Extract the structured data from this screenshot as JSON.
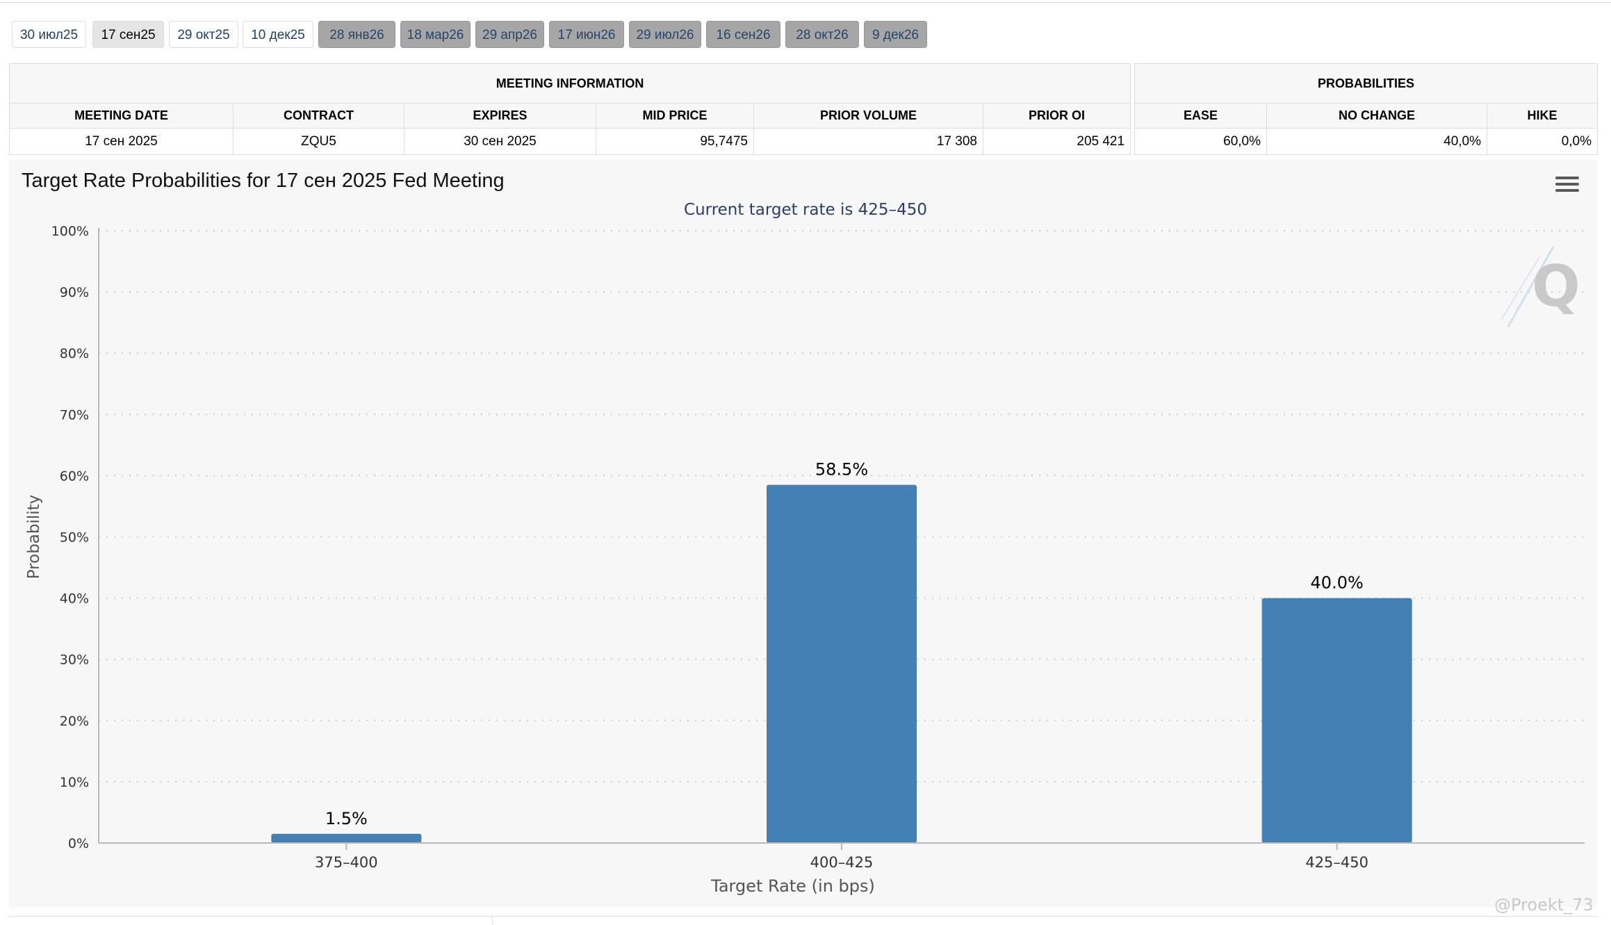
{
  "tabs": [
    {
      "label": "30 июл25",
      "style": "light"
    },
    {
      "label": "17 сен25",
      "style": "active"
    },
    {
      "label": "29 окт25",
      "style": "light"
    },
    {
      "label": "10 дек25",
      "style": "light"
    },
    {
      "label": "28 янв26",
      "style": "dark"
    },
    {
      "label": "18 мар26",
      "style": "dark"
    },
    {
      "label": "29 апр26",
      "style": "dark"
    },
    {
      "label": "17 июн26",
      "style": "dark"
    },
    {
      "label": "29 июл26",
      "style": "dark"
    },
    {
      "label": "16 сен26",
      "style": "dark"
    },
    {
      "label": "28 окт26",
      "style": "dark"
    },
    {
      "label": "9 дек26",
      "style": "dark"
    }
  ],
  "meeting": {
    "group_title": "MEETING INFORMATION",
    "headers": [
      "MEETING DATE",
      "CONTRACT",
      "EXPIRES",
      "MID PRICE",
      "PRIOR VOLUME",
      "PRIOR OI"
    ],
    "values": [
      "17 сен 2025",
      "ZQU5",
      "30 сен 2025",
      "95,7475",
      "17 308",
      "205 421"
    ]
  },
  "probabilities": {
    "group_title": "PROBABILITIES",
    "headers": [
      "EASE",
      "NO CHANGE",
      "HIKE"
    ],
    "values": [
      "60,0%",
      "40,0%",
      "0,0%"
    ]
  },
  "chart_title": "Target Rate Probabilities for 17 сен 2025 Fed Meeting",
  "watermark": "@Proekt_73",
  "colors": {
    "bar": "#4380b4",
    "subtitle": "#2b3f66",
    "panel": "#f7f7f7"
  },
  "chart_data": {
    "type": "bar",
    "subtitle": "Current target rate is 425–450",
    "categories": [
      "375–400",
      "400–425",
      "425–450"
    ],
    "values": [
      1.5,
      58.5,
      40.0
    ],
    "data_labels": [
      "1.5%",
      "58.5%",
      "40.0%"
    ],
    "xlabel": "Target Rate (in bps)",
    "ylabel": "Probability",
    "ylim": [
      0,
      100
    ],
    "yticks": [
      0,
      10,
      20,
      30,
      40,
      50,
      60,
      70,
      80,
      90,
      100
    ],
    "ytick_labels": [
      "0%",
      "10%",
      "20%",
      "30%",
      "40%",
      "50%",
      "60%",
      "70%",
      "80%",
      "90%",
      "100%"
    ],
    "grid": true,
    "legend": "none"
  }
}
